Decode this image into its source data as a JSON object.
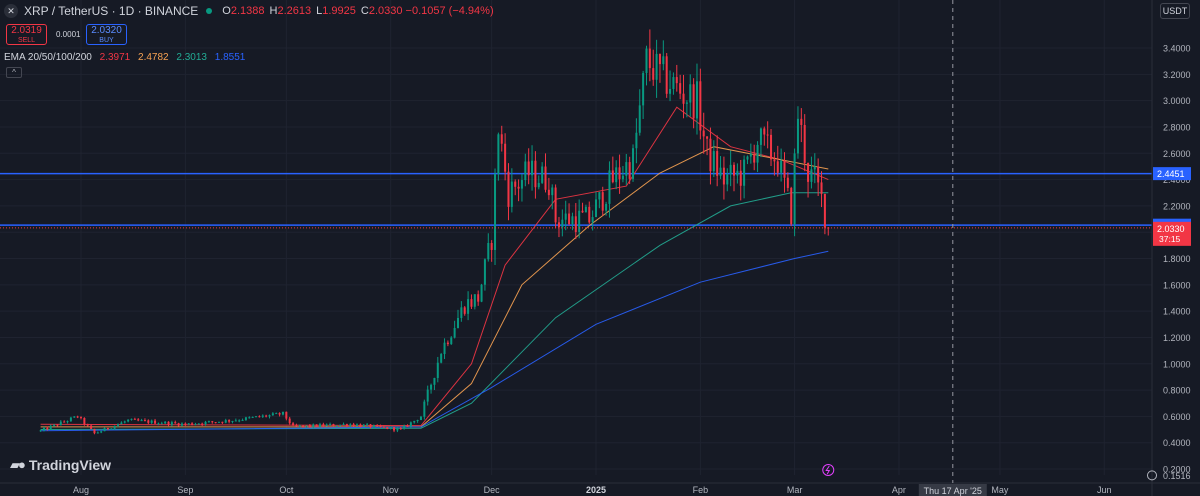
{
  "header": {
    "title": "XRP / TetherUS · 1D · BINANCE",
    "ohlc": [
      {
        "key": "O",
        "value": "2.1388"
      },
      {
        "key": "H",
        "value": "2.2613"
      },
      {
        "key": "L",
        "value": "1.9925"
      },
      {
        "key": "C",
        "value": "2.0330 −0.1057 (−4.94%)"
      }
    ]
  },
  "trade": {
    "sell_price": "2.0319",
    "sell_label": "SELL",
    "spread": "0.0001",
    "buy_price": "2.0320",
    "buy_label": "BUY"
  },
  "ema": {
    "label": "EMA 20/50/100/200",
    "values": [
      {
        "value": "2.3971",
        "color": "#f23645"
      },
      {
        "value": "2.4782",
        "color": "#f7a252"
      },
      {
        "value": "2.3013",
        "color": "#22ab94"
      },
      {
        "value": "1.8551",
        "color": "#2962ff"
      }
    ]
  },
  "controls": {
    "currency": "USDT",
    "collapse": "^"
  },
  "brand": "TradingView",
  "colors": {
    "up": "#089981",
    "down": "#f23645",
    "hline": "#2962ff",
    "bg": "#161a25"
  },
  "chart_data": {
    "type": "candlestick",
    "x_axis": {
      "labels": [
        {
          "label": "Aug",
          "date": "2024-08-01"
        },
        {
          "label": "Sep",
          "date": "2024-09-01"
        },
        {
          "label": "Oct",
          "date": "2024-10-01"
        },
        {
          "label": "Nov",
          "date": "2024-11-01"
        },
        {
          "label": "Dec",
          "date": "2024-12-01"
        },
        {
          "label": "2025",
          "date": "2025-01-01"
        },
        {
          "label": "Feb",
          "date": "2025-02-01"
        },
        {
          "label": "Mar",
          "date": "2025-03-01"
        },
        {
          "label": "Apr",
          "date": "2025-04-01"
        },
        {
          "label": "May",
          "date": "2025-05-01"
        },
        {
          "label": "Jun",
          "date": "2025-06-01"
        }
      ],
      "crosshair": {
        "label": "Thu 17 Apr '25",
        "date": "2025-04-17"
      }
    },
    "y_axis": {
      "range": [
        0.1516,
        3.55
      ],
      "ticks": [
        "0.2000",
        "0.4000",
        "0.6000",
        "0.8000",
        "1.0000",
        "1.2000",
        "1.4000",
        "1.6000",
        "1.8000",
        "2.0000",
        "2.2000",
        "2.4000",
        "2.6000",
        "2.8000",
        "3.0000",
        "3.2000",
        "3.4000"
      ],
      "low_label": "0.1516"
    },
    "horizontal_lines": [
      {
        "value": 2.4451,
        "label": "2.4451"
      },
      {
        "value": 2.0533,
        "label": "2.0533"
      }
    ],
    "last_price": {
      "value": 2.033,
      "label": "2.0330",
      "countdown": "37:15"
    },
    "anchors": [
      {
        "date": "2024-07-20",
        "close": 0.49
      },
      {
        "date": "2024-07-31",
        "close": 0.6
      },
      {
        "date": "2024-08-05",
        "close": 0.47
      },
      {
        "date": "2024-08-15",
        "close": 0.57
      },
      {
        "date": "2024-09-01",
        "close": 0.54
      },
      {
        "date": "2024-09-15",
        "close": 0.57
      },
      {
        "date": "2024-09-30",
        "close": 0.62
      },
      {
        "date": "2024-10-03",
        "close": 0.52
      },
      {
        "date": "2024-10-20",
        "close": 0.54
      },
      {
        "date": "2024-11-04",
        "close": 0.5
      },
      {
        "date": "2024-11-10",
        "close": 0.6
      },
      {
        "date": "2024-11-16",
        "close": 1.1
      },
      {
        "date": "2024-11-23",
        "close": 1.45
      },
      {
        "date": "2024-11-27",
        "close": 1.5
      },
      {
        "date": "2024-12-01",
        "close": 1.95
      },
      {
        "date": "2024-12-03",
        "close": 2.8
      },
      {
        "date": "2024-12-06",
        "close": 2.3
      },
      {
        "date": "2024-12-12",
        "close": 2.45
      },
      {
        "date": "2024-12-18",
        "close": 2.4
      },
      {
        "date": "2024-12-20",
        "close": 2.1
      },
      {
        "date": "2024-12-30",
        "close": 2.1
      },
      {
        "date": "2025-01-06",
        "close": 2.4
      },
      {
        "date": "2025-01-12",
        "close": 2.55
      },
      {
        "date": "2025-01-16",
        "close": 3.3
      },
      {
        "date": "2025-01-20",
        "close": 3.2
      },
      {
        "date": "2025-01-27",
        "close": 3.05
      },
      {
        "date": "2025-01-31",
        "close": 3.0
      },
      {
        "date": "2025-02-03",
        "close": 2.6
      },
      {
        "date": "2025-02-08",
        "close": 2.4
      },
      {
        "date": "2025-02-14",
        "close": 2.45
      },
      {
        "date": "2025-02-18",
        "close": 2.7
      },
      {
        "date": "2025-02-24",
        "close": 2.55
      },
      {
        "date": "2025-02-28",
        "close": 2.15
      },
      {
        "date": "2025-03-02",
        "close": 2.9
      },
      {
        "date": "2025-03-05",
        "close": 2.45
      },
      {
        "date": "2025-03-07",
        "close": 2.4
      },
      {
        "date": "2025-03-09",
        "close": 2.25
      },
      {
        "date": "2025-03-11",
        "close": 2.03
      }
    ],
    "ema_series": [
      {
        "name": "EMA 20",
        "color": "#f23645",
        "points": [
          [
            "2024-07-20",
            0.54
          ],
          [
            "2024-11-10",
            0.53
          ],
          [
            "2024-11-25",
            1.0
          ],
          [
            "2024-12-05",
            1.75
          ],
          [
            "2024-12-20",
            2.25
          ],
          [
            "2025-01-10",
            2.35
          ],
          [
            "2025-01-25",
            2.95
          ],
          [
            "2025-02-10",
            2.65
          ],
          [
            "2025-02-25",
            2.55
          ],
          [
            "2025-03-11",
            2.4
          ]
        ]
      },
      {
        "name": "EMA 50",
        "color": "#f7a252",
        "points": [
          [
            "2024-07-20",
            0.52
          ],
          [
            "2024-11-10",
            0.52
          ],
          [
            "2024-11-25",
            0.85
          ],
          [
            "2024-12-10",
            1.6
          ],
          [
            "2024-12-30",
            2.05
          ],
          [
            "2025-01-20",
            2.45
          ],
          [
            "2025-02-05",
            2.65
          ],
          [
            "2025-02-25",
            2.55
          ],
          [
            "2025-03-11",
            2.48
          ]
        ]
      },
      {
        "name": "EMA 100",
        "color": "#22ab94",
        "points": [
          [
            "2024-07-20",
            0.5
          ],
          [
            "2024-11-10",
            0.51
          ],
          [
            "2024-11-25",
            0.7
          ],
          [
            "2024-12-20",
            1.35
          ],
          [
            "2025-01-20",
            1.9
          ],
          [
            "2025-02-10",
            2.2
          ],
          [
            "2025-02-28",
            2.3
          ],
          [
            "2025-03-11",
            2.3
          ]
        ]
      },
      {
        "name": "EMA 200",
        "color": "#2962ff",
        "points": [
          [
            "2024-07-20",
            0.49
          ],
          [
            "2024-11-10",
            0.52
          ],
          [
            "2024-12-01",
            0.82
          ],
          [
            "2025-01-01",
            1.3
          ],
          [
            "2025-02-01",
            1.62
          ],
          [
            "2025-03-01",
            1.8
          ],
          [
            "2025-03-11",
            1.855
          ]
        ]
      }
    ]
  }
}
